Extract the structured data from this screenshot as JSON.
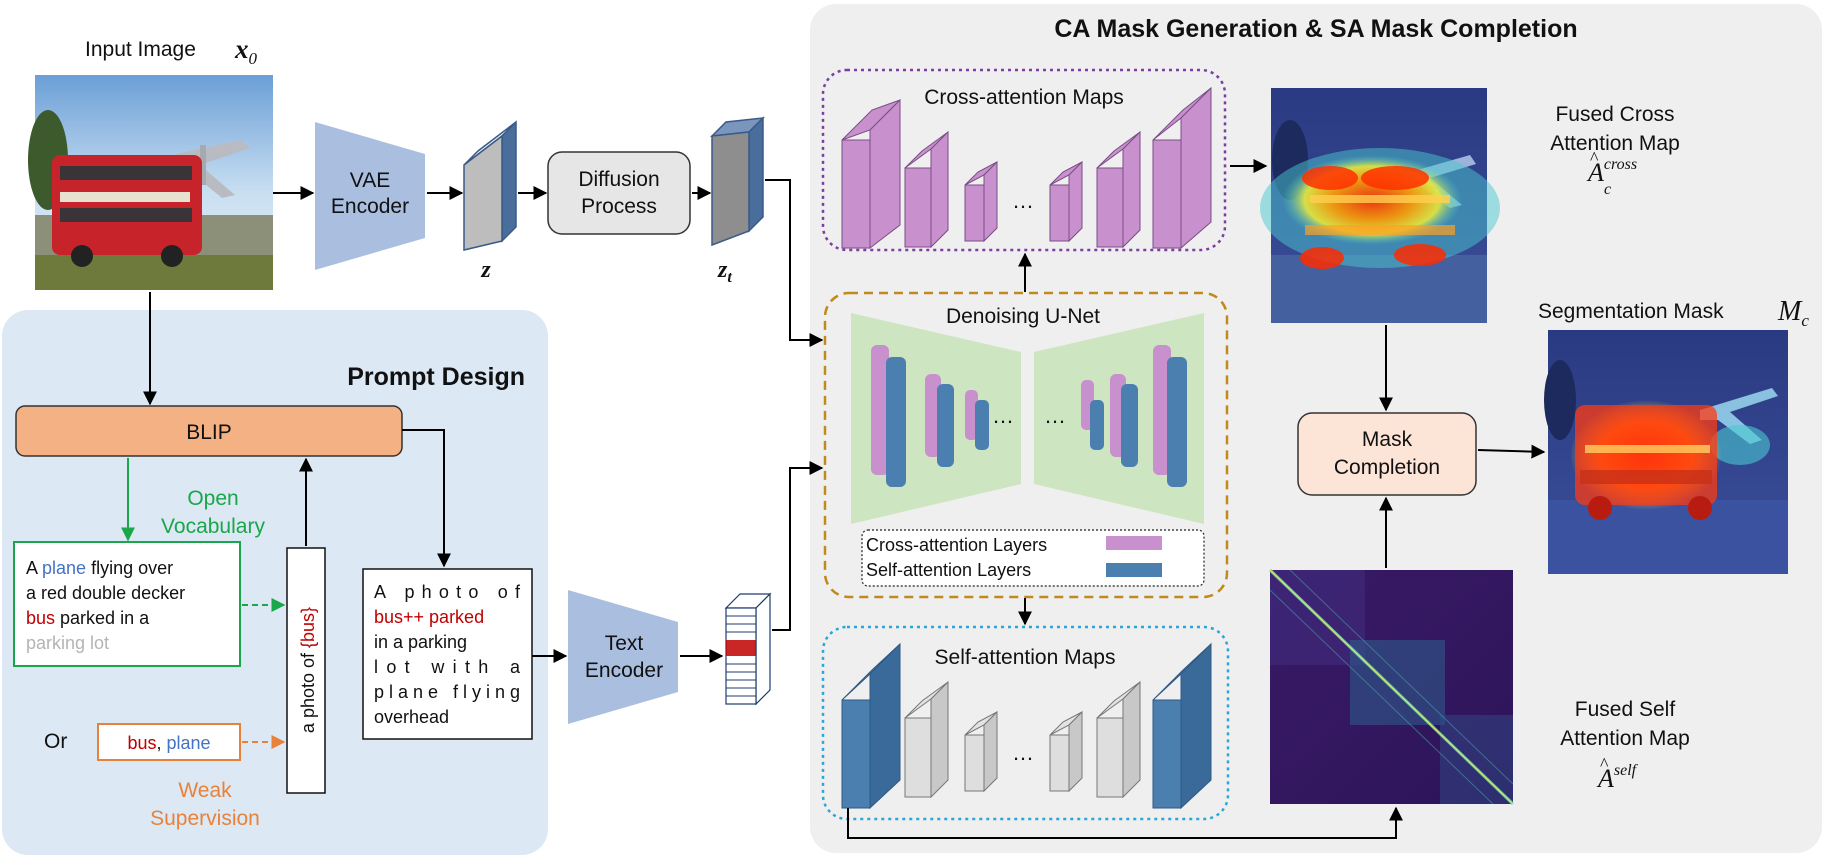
{
  "input_image": {
    "title": "Input Image",
    "symbol_main": "x",
    "symbol_sub": "0"
  },
  "vae_encoder": {
    "line1": "VAE",
    "line2": "Encoder"
  },
  "latent_z": "z",
  "diffusion": {
    "line1": "Diffusion",
    "line2": "Process"
  },
  "latent_zt": {
    "main": "z",
    "sub": "t"
  },
  "prompt_design": {
    "title": "Prompt Design",
    "blip_label": "BLIP",
    "open_vocab": [
      "Open",
      "Vocabulary"
    ],
    "caption": {
      "line1": {
        "pre": "A ",
        "highlight": "plane",
        "post": " flying over"
      },
      "line2": "a red double decker",
      "line3": {
        "highlight": "bus",
        "post": " parked in a"
      },
      "line4": "parking lot"
    },
    "or_label": "Or",
    "weak_labels": {
      "first": "bus",
      "sep": ", ",
      "second": "plane"
    },
    "weak_supervision": [
      "Weak",
      "Supervision"
    ],
    "template": {
      "pre": "a photo of ",
      "token": "{bus}"
    },
    "final_prompt": {
      "line1": "A photo of",
      "line2": "bus++ parked",
      "line3": "in a parking",
      "line4": "lot with a",
      "line5": "plane flying",
      "line6": "overhead"
    }
  },
  "text_encoder": {
    "line1": "Text",
    "line2": "Encoder"
  },
  "ca_panel": {
    "title": "CA Mask Generation & SA Mask Completion",
    "cross_maps_title": "Cross-attention Maps",
    "self_maps_title": "Self-attention Maps",
    "unet_title": "Denoising U-Net",
    "ellipsis": "…",
    "legend": {
      "cross": "Cross-attention Layers",
      "self": "Self-attention Layers"
    },
    "mask_completion": {
      "line1": "Mask",
      "line2": "Completion"
    },
    "fused_cross": {
      "line1": "Fused Cross",
      "line2": "Attention Map",
      "symbol": "A",
      "sup": "cross",
      "sub": "c"
    },
    "fused_self": {
      "line1": "Fused Self",
      "line2": "Attention Map",
      "symbol": "A",
      "sup": "self"
    },
    "seg_mask": {
      "label": "Segmentation Mask",
      "symbol": "M",
      "sub": "c"
    }
  },
  "colors": {
    "panel_gray": "#efefef",
    "prompt_blue": "#dce8f4",
    "encoder_blue": "#aabfe0",
    "blip_orange": "#f4b183",
    "mask_completion_fill": "#fce4d6",
    "cross_purple": "#c890cc",
    "self_blue": "#4a7fb0",
    "unet_green": "#cde6c1",
    "green_text": "#1aa64a",
    "orange_text": "#e8823a",
    "red_text": "#c00000",
    "blue_text": "#4472c4",
    "gray_text": "#b4b4b4"
  }
}
